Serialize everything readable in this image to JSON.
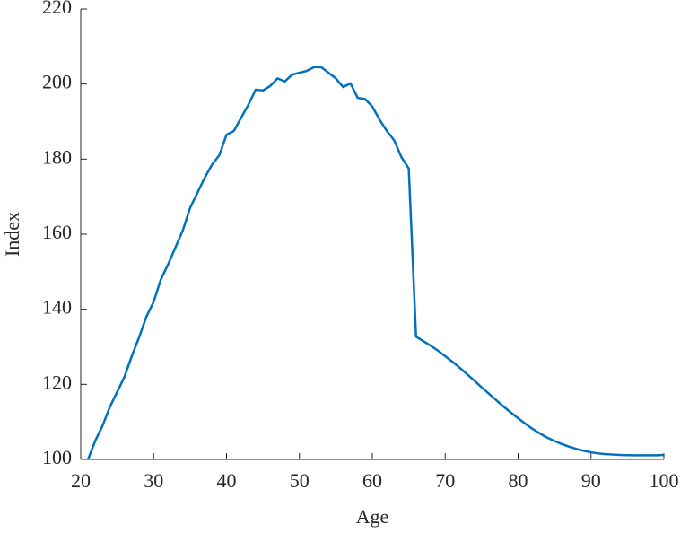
{
  "chart_data": {
    "type": "line",
    "xlabel": "Age",
    "ylabel": "Index",
    "x": [
      21,
      22,
      23,
      24,
      25,
      26,
      27,
      28,
      29,
      30,
      31,
      32,
      33,
      34,
      35,
      36,
      37,
      38,
      39,
      40,
      41,
      42,
      43,
      44,
      45,
      46,
      47,
      48,
      49,
      50,
      51,
      52,
      53,
      54,
      55,
      56,
      57,
      58,
      59,
      60,
      61,
      62,
      63,
      64,
      65,
      66,
      67,
      68,
      69,
      70,
      71,
      72,
      73,
      74,
      75,
      76,
      77,
      78,
      79,
      80,
      81,
      82,
      83,
      84,
      85,
      86,
      87,
      88,
      89,
      90,
      91,
      92,
      93,
      94,
      95,
      96,
      97,
      98,
      99,
      100
    ],
    "series": [
      {
        "color": "#0072bd",
        "values": [
          100,
          105,
          109,
          114,
          118,
          122,
          127.5,
          132.5,
          138,
          142,
          148,
          152,
          156.5,
          161,
          167,
          171,
          175,
          178.5,
          181,
          186.5,
          187.5,
          191,
          194.5,
          198.5,
          198.3,
          199.5,
          201.5,
          200.7,
          202.5,
          203,
          203.5,
          204.5,
          204.5,
          203,
          201.5,
          199.2,
          200.2,
          196.3,
          196,
          194,
          190.5,
          187.5,
          185,
          180.5,
          177.5,
          132.7,
          131.5,
          130.3,
          129,
          127.5,
          126,
          124.4,
          122.7,
          121,
          119.2,
          117.5,
          115.8,
          114.1,
          112.5,
          111,
          109.5,
          108.1,
          106.9,
          105.8,
          104.9,
          104.1,
          103.4,
          102.8,
          102.3,
          101.9,
          101.6,
          101.4,
          101.3,
          101.2,
          101.15,
          101.1,
          101.1,
          101.1,
          101.1,
          101.2
        ]
      }
    ],
    "xlim": [
      20,
      100
    ],
    "xticks": [
      20,
      30,
      40,
      50,
      60,
      70,
      80,
      90,
      100
    ],
    "ylim": [
      100,
      220
    ],
    "yticks": [
      100,
      120,
      140,
      160,
      180,
      200,
      220
    ],
    "grid": false
  }
}
